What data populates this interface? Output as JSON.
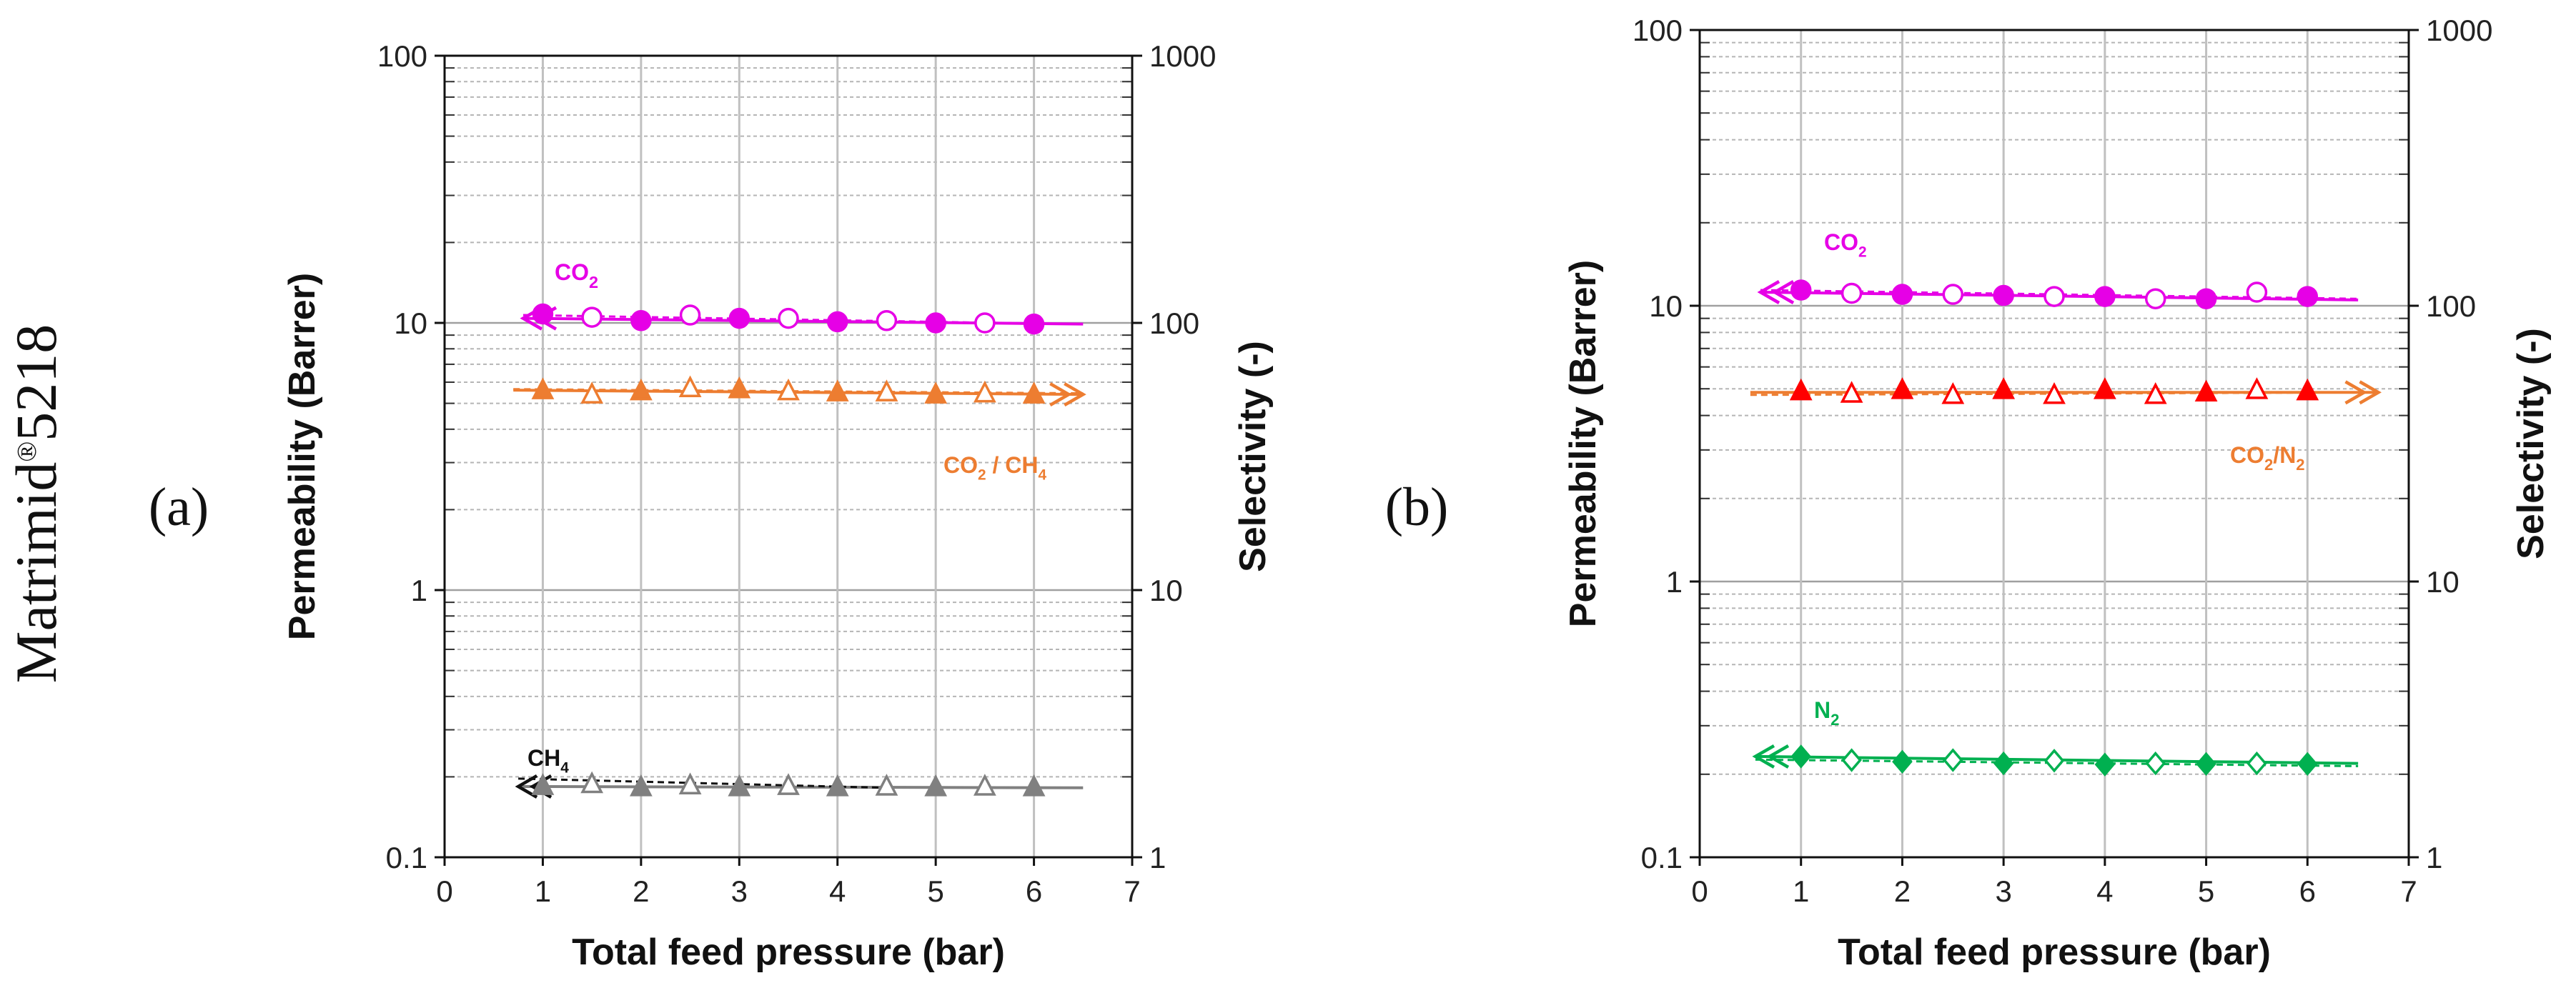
{
  "side_label": {
    "text": "Matrimid",
    "reg": "®",
    "num": "5218"
  },
  "chart_data": [
    {
      "type": "scatter",
      "panel": "(a)",
      "xlabel": "Total feed pressure (bar)",
      "ylabel": "Permeability (Barrer)",
      "y2label": "Selectivity (-)",
      "xlim": [
        0,
        7
      ],
      "ylim": [
        0.1,
        100
      ],
      "y2lim": [
        1,
        1000
      ],
      "yscale": "log",
      "xticks": [
        "0",
        "1",
        "2",
        "3",
        "4",
        "5",
        "6",
        "7"
      ],
      "yticks": [
        "0.1",
        "1",
        "10",
        "100"
      ],
      "y2ticks": [
        "1",
        "10",
        "100",
        "1000"
      ],
      "grid": true,
      "x_filled": [
        1,
        2,
        3,
        4,
        5,
        6
      ],
      "x_open": [
        1.5,
        2.5,
        3.5,
        4.5,
        5.5
      ],
      "series": [
        {
          "name": "CO2",
          "label": "CO",
          "sub": "2",
          "axis": "left",
          "color": "#e600e6",
          "marker": "circle",
          "filled": [
            10.8,
            10.2,
            10.4,
            10.1,
            10.0,
            9.9
          ],
          "open": [
            10.5,
            10.7,
            10.4,
            10.2,
            10.0
          ],
          "fit_solid": [
            [
              0.8,
              10.4
            ],
            [
              6.5,
              9.9
            ]
          ],
          "fit_dashed": [
            [
              0.8,
              10.7
            ],
            [
              6.0,
              9.95
            ]
          ],
          "arrow": "left"
        },
        {
          "name": "CO2/CH4",
          "label": "CO",
          "sub": "2",
          "label2": " / CH",
          "sub2": "4",
          "axis": "right",
          "color": "#ed7d31",
          "marker": "triangle",
          "filled": [
            56,
            55.5,
            56.5,
            55,
            54,
            54
          ],
          "open": [
            54,
            57,
            55.5,
            55,
            54.5
          ],
          "fit_solid": [
            [
              0.7,
              56
            ],
            [
              6.5,
              54
            ]
          ],
          "fit_dashed": [
            [
              0.7,
              56.5
            ],
            [
              6.5,
              54.5
            ]
          ],
          "arrow": "right"
        },
        {
          "name": "CH4",
          "label": "CH",
          "sub": "4",
          "axis": "left",
          "color": "#808080",
          "marker": "triangle",
          "filled": [
            0.185,
            0.183,
            0.183,
            0.183,
            0.183,
            0.183
          ],
          "open": [
            0.188,
            0.186,
            0.185,
            0.184,
            0.184
          ],
          "fit_solid": [
            [
              0.75,
              0.184
            ],
            [
              6.5,
              0.182
            ]
          ],
          "fit_dashed": [
            [
              0.75,
              0.197
            ],
            [
              4.5,
              0.182
            ]
          ],
          "arrow": "left"
        }
      ]
    },
    {
      "type": "scatter",
      "panel": "(b)",
      "xlabel": "Total feed pressure (bar)",
      "ylabel": "Permeability (Barrer)",
      "y2label": "Selectivity (-)",
      "xlim": [
        0,
        7
      ],
      "ylim": [
        0.1,
        100
      ],
      "y2lim": [
        1,
        1000
      ],
      "yscale": "log",
      "xticks": [
        "0",
        "1",
        "2",
        "3",
        "4",
        "5",
        "6",
        "7"
      ],
      "yticks": [
        "0.1",
        "1",
        "10",
        "100"
      ],
      "y2ticks": [
        "1",
        "10",
        "100",
        "1000"
      ],
      "grid": true,
      "x_filled": [
        1,
        2,
        3,
        4,
        5,
        6
      ],
      "x_open": [
        1.5,
        2.5,
        3.5,
        4.5,
        5.5
      ],
      "series": [
        {
          "name": "CO2",
          "label": "CO",
          "sub": "2",
          "axis": "left",
          "color": "#e600e6",
          "marker": "circle",
          "filled": [
            11.4,
            11.0,
            10.9,
            10.8,
            10.6,
            10.8
          ],
          "open": [
            11.1,
            11.0,
            10.8,
            10.6,
            11.2
          ],
          "fit_solid": [
            [
              0.6,
              11.2
            ],
            [
              6.5,
              10.5
            ]
          ],
          "fit_dashed": [
            [
              0.6,
              11.4
            ],
            [
              6.5,
              10.6
            ]
          ],
          "arrow": "left"
        },
        {
          "name": "CO2/N2",
          "label": "CO",
          "sub": "2",
          "label2": "/N",
          "sub2": "2",
          "axis": "right",
          "color": "#ff0000",
          "marker": "triangle",
          "fit_color": "#ed7d31",
          "filled": [
            49,
            49.5,
            49.5,
            49.5,
            48.5,
            49
          ],
          "open": [
            48,
            47.5,
            47.5,
            47.5,
            49.5
          ],
          "fit_solid": [
            [
              0.5,
              48.5
            ],
            [
              6.7,
              48.5
            ]
          ],
          "fit_dashed": [
            [
              0.5,
              47.5
            ],
            [
              6.5,
              48.5
            ]
          ],
          "arrow": "right"
        },
        {
          "name": "N2",
          "label": "N",
          "sub": "2",
          "axis": "left",
          "color": "#00b050",
          "marker": "diamond",
          "filled": [
            0.232,
            0.222,
            0.219,
            0.217,
            0.218,
            0.218
          ],
          "open": [
            0.225,
            0.225,
            0.224,
            0.219,
            0.219
          ],
          "fit_solid": [
            [
              0.55,
              0.232
            ],
            [
              6.5,
              0.219
            ]
          ],
          "fit_dashed": [
            [
              0.55,
              0.226
            ],
            [
              6.5,
              0.214
            ]
          ],
          "arrow": "left"
        }
      ]
    }
  ]
}
